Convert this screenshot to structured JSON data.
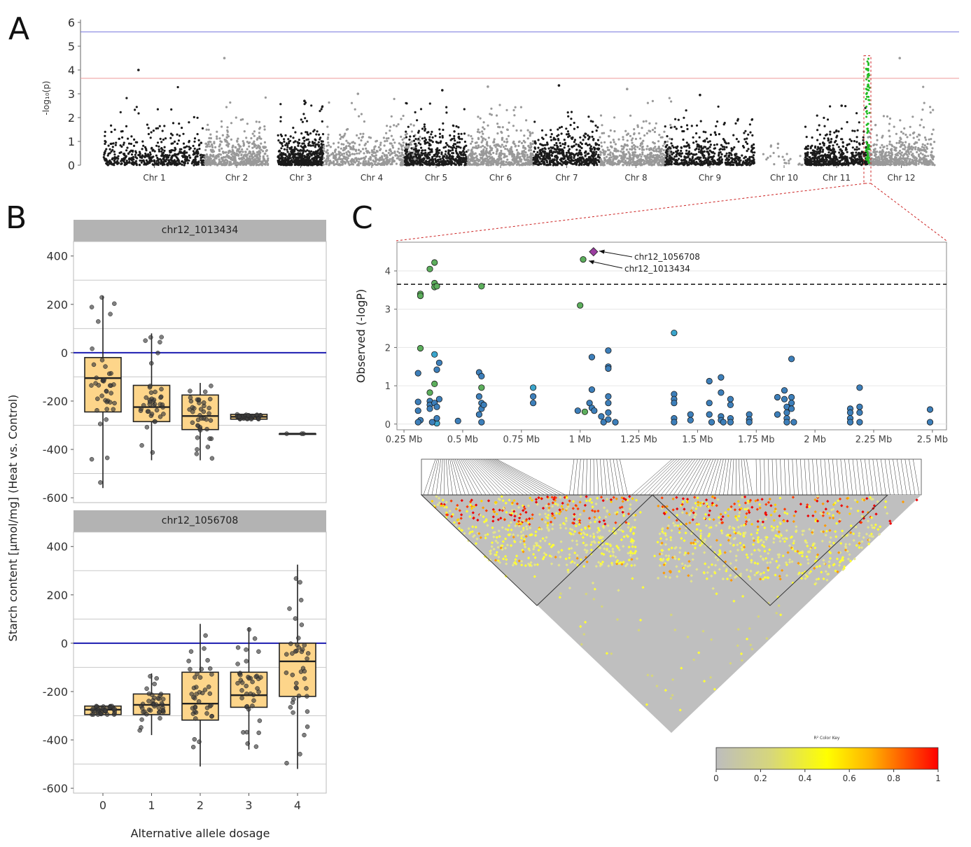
{
  "panels": {
    "a": "A",
    "b": "B",
    "c": "C"
  },
  "manhattan": {
    "ylabel": "-log₁₀(p)",
    "yticks": [
      0,
      1,
      2,
      3,
      4,
      5,
      6
    ],
    "ylim": [
      0,
      6
    ],
    "thresholds": [
      {
        "value": 5.6,
        "color": "#7777dd"
      },
      {
        "value": 3.65,
        "color": "#ee9999"
      }
    ],
    "colors": {
      "dark": "#1a1a1a",
      "light": "#999999",
      "highlight": "#22bb22"
    }
  },
  "boxplots": {
    "ylabel": "Starch content [µmol/mg] (Heat vs. Control)",
    "xlabel": "Alternative allele dosage",
    "yticks": [
      400,
      200,
      0,
      -200,
      -400,
      -600
    ],
    "ylim": [
      -620,
      460
    ],
    "xticks": [
      "0",
      "1",
      "2",
      "3",
      "4"
    ],
    "zero_line_color": "#1c1cb0",
    "box_fill": "#fdd58a",
    "facets": [
      {
        "title": "chr12_1013434",
        "boxes": [
          {
            "x": 0,
            "q1": -245,
            "median": -105,
            "q3": -20,
            "lo": -560,
            "hi": 235
          },
          {
            "x": 1,
            "q1": -285,
            "median": -225,
            "q3": -135,
            "lo": -445,
            "hi": 80
          },
          {
            "x": 2,
            "q1": -318,
            "median": -262,
            "q3": -175,
            "lo": -445,
            "hi": -125
          },
          {
            "x": 3,
            "q1": -275,
            "median": -265,
            "q3": -255,
            "lo": -275,
            "hi": -255
          },
          {
            "x": 4,
            "q1": -335,
            "median": -335,
            "q3": -335,
            "lo": -335,
            "hi": -335
          }
        ]
      },
      {
        "title": "chr12_1056708",
        "boxes": [
          {
            "x": 0,
            "q1": -295,
            "median": -275,
            "q3": -260,
            "lo": -295,
            "hi": -260
          },
          {
            "x": 1,
            "q1": -295,
            "median": -255,
            "q3": -210,
            "lo": -380,
            "hi": -125
          },
          {
            "x": 2,
            "q1": -318,
            "median": -250,
            "q3": -120,
            "lo": -510,
            "hi": 80
          },
          {
            "x": 3,
            "q1": -265,
            "median": -215,
            "q3": -120,
            "lo": -440,
            "hi": 65
          },
          {
            "x": 4,
            "q1": -220,
            "median": -75,
            "q3": 0,
            "lo": -520,
            "hi": 325
          }
        ]
      }
    ]
  },
  "chart_data": [
    {
      "type": "scatter",
      "name": "Manhattan plot",
      "x_categories": [
        "Chr 1",
        "Chr 2",
        "Chr 3",
        "Chr 4",
        "Chr 5",
        "Chr 6",
        "Chr 7",
        "Chr 8",
        "Chr 9",
        "Chr 10",
        "Chr 11",
        "Chr 12"
      ],
      "ylabel": "-log₁₀(p)",
      "ylim": [
        0,
        6
      ],
      "chromosome_peaks": [
        {
          "chr": "Chr 1",
          "max": 4.0
        },
        {
          "chr": "Chr 2",
          "max": 4.5
        },
        {
          "chr": "Chr 3",
          "max": 2.7
        },
        {
          "chr": "Chr 4",
          "max": 3.0
        },
        {
          "chr": "Chr 5",
          "max": 3.15
        },
        {
          "chr": "Chr 6",
          "max": 3.3
        },
        {
          "chr": "Chr 7",
          "max": 3.35
        },
        {
          "chr": "Chr 8",
          "max": 3.2
        },
        {
          "chr": "Chr 9",
          "max": 2.95
        },
        {
          "chr": "Chr 10",
          "max": 0.9
        },
        {
          "chr": "Chr 11",
          "max": 2.5
        },
        {
          "chr": "Chr 12",
          "max": 4.5
        }
      ]
    },
    {
      "type": "scatter",
      "name": "Regional association",
      "ylabel": "Observed (-logP)",
      "xticks": [
        "0.25 Mb",
        "0.5 Mb",
        "0.75 Mb",
        "1 Mb",
        "1.25 Mb",
        "1.5 Mb",
        "1.75 Mb",
        "2 Mb",
        "2.25 Mb",
        "2.5 Mb"
      ],
      "xlim": [
        0.22,
        2.56
      ],
      "ylim": [
        -0.15,
        4.75
      ],
      "yticks": [
        0,
        1,
        2,
        3,
        4
      ],
      "threshold": 3.65,
      "annotations": [
        {
          "label": "chr12_1056708",
          "x": 1.057,
          "y": 4.5
        },
        {
          "label": "chr12_1013434",
          "x": 1.013,
          "y": 4.3
        }
      ],
      "points": [
        {
          "x": 0.32,
          "y": 3.4,
          "g": "green"
        },
        {
          "x": 0.32,
          "y": 3.35,
          "g": "green"
        },
        {
          "x": 0.32,
          "y": 1.98,
          "g": "green"
        },
        {
          "x": 0.36,
          "y": 4.05,
          "g": "green"
        },
        {
          "x": 0.38,
          "y": 4.22,
          "g": "green"
        },
        {
          "x": 0.38,
          "y": 3.68,
          "g": "green"
        },
        {
          "x": 0.38,
          "y": 3.58,
          "g": "green"
        },
        {
          "x": 0.39,
          "y": 3.6,
          "g": "green"
        },
        {
          "x": 0.38,
          "y": 1.05,
          "g": "green"
        },
        {
          "x": 0.36,
          "y": 0.82,
          "g": "green"
        },
        {
          "x": 0.58,
          "y": 3.6,
          "g": "green"
        },
        {
          "x": 0.58,
          "y": 0.95,
          "g": "green"
        },
        {
          "x": 1.013,
          "y": 4.3,
          "g": "green"
        },
        {
          "x": 1.0,
          "y": 3.1,
          "g": "green"
        },
        {
          "x": 1.02,
          "y": 0.32,
          "g": "green"
        },
        {
          "x": 0.38,
          "y": 1.82,
          "g": "cyan"
        },
        {
          "x": 0.39,
          "y": 0.02,
          "g": "cyan"
        },
        {
          "x": 0.8,
          "y": 0.95,
          "g": "cyan"
        },
        {
          "x": 1.4,
          "y": 2.38,
          "g": "cyan"
        },
        {
          "x": 0.31,
          "y": 1.33,
          "g": "blue"
        },
        {
          "x": 0.31,
          "y": 0.58,
          "g": "blue"
        },
        {
          "x": 0.31,
          "y": 0.35,
          "g": "blue"
        },
        {
          "x": 0.32,
          "y": 0.1,
          "g": "blue"
        },
        {
          "x": 0.31,
          "y": 0.05,
          "g": "blue"
        },
        {
          "x": 0.36,
          "y": 0.6,
          "g": "blue"
        },
        {
          "x": 0.36,
          "y": 0.5,
          "g": "blue"
        },
        {
          "x": 0.36,
          "y": 0.4,
          "g": "blue"
        },
        {
          "x": 0.37,
          "y": 0.05,
          "g": "blue"
        },
        {
          "x": 0.38,
          "y": 0.55,
          "g": "blue"
        },
        {
          "x": 0.39,
          "y": 0.45,
          "g": "blue"
        },
        {
          "x": 0.39,
          "y": 0.15,
          "g": "blue"
        },
        {
          "x": 0.39,
          "y": 1.42,
          "g": "blue"
        },
        {
          "x": 0.4,
          "y": 1.6,
          "g": "blue"
        },
        {
          "x": 0.4,
          "y": 0.65,
          "g": "blue"
        },
        {
          "x": 0.48,
          "y": 0.08,
          "g": "blue"
        },
        {
          "x": 0.57,
          "y": 1.35,
          "g": "blue"
        },
        {
          "x": 0.58,
          "y": 1.25,
          "g": "blue"
        },
        {
          "x": 0.57,
          "y": 0.72,
          "g": "blue"
        },
        {
          "x": 0.58,
          "y": 0.55,
          "g": "blue"
        },
        {
          "x": 0.58,
          "y": 0.4,
          "g": "blue"
        },
        {
          "x": 0.57,
          "y": 0.25,
          "g": "blue"
        },
        {
          "x": 0.58,
          "y": 0.05,
          "g": "blue"
        },
        {
          "x": 0.59,
          "y": 0.5,
          "g": "blue"
        },
        {
          "x": 0.8,
          "y": 0.72,
          "g": "blue"
        },
        {
          "x": 0.8,
          "y": 0.55,
          "g": "blue"
        },
        {
          "x": 0.99,
          "y": 0.35,
          "g": "blue"
        },
        {
          "x": 1.05,
          "y": 1.75,
          "g": "blue"
        },
        {
          "x": 1.05,
          "y": 0.9,
          "g": "blue"
        },
        {
          "x": 1.04,
          "y": 0.55,
          "g": "blue"
        },
        {
          "x": 1.05,
          "y": 0.42,
          "g": "blue"
        },
        {
          "x": 1.06,
          "y": 0.35,
          "g": "blue"
        },
        {
          "x": 1.09,
          "y": 0.2,
          "g": "blue"
        },
        {
          "x": 1.1,
          "y": 0.05,
          "g": "blue"
        },
        {
          "x": 1.12,
          "y": 1.92,
          "g": "blue"
        },
        {
          "x": 1.12,
          "y": 1.5,
          "g": "blue"
        },
        {
          "x": 1.12,
          "y": 1.45,
          "g": "blue"
        },
        {
          "x": 1.12,
          "y": 0.72,
          "g": "blue"
        },
        {
          "x": 1.12,
          "y": 0.55,
          "g": "blue"
        },
        {
          "x": 1.12,
          "y": 0.3,
          "g": "blue"
        },
        {
          "x": 1.12,
          "y": 0.12,
          "g": "blue"
        },
        {
          "x": 1.15,
          "y": 0.05,
          "g": "blue"
        },
        {
          "x": 1.4,
          "y": 0.78,
          "g": "blue"
        },
        {
          "x": 1.4,
          "y": 0.65,
          "g": "blue"
        },
        {
          "x": 1.4,
          "y": 0.55,
          "g": "blue"
        },
        {
          "x": 1.4,
          "y": 0.15,
          "g": "blue"
        },
        {
          "x": 1.4,
          "y": 0.05,
          "g": "blue"
        },
        {
          "x": 1.47,
          "y": 0.25,
          "g": "blue"
        },
        {
          "x": 1.47,
          "y": 0.1,
          "g": "blue"
        },
        {
          "x": 1.55,
          "y": 1.12,
          "g": "blue"
        },
        {
          "x": 1.55,
          "y": 0.55,
          "g": "blue"
        },
        {
          "x": 1.55,
          "y": 0.25,
          "g": "blue"
        },
        {
          "x": 1.56,
          "y": 0.05,
          "g": "blue"
        },
        {
          "x": 1.6,
          "y": 1.22,
          "g": "blue"
        },
        {
          "x": 1.6,
          "y": 0.82,
          "g": "blue"
        },
        {
          "x": 1.6,
          "y": 0.2,
          "g": "blue"
        },
        {
          "x": 1.6,
          "y": 0.1,
          "g": "blue"
        },
        {
          "x": 1.61,
          "y": 0.05,
          "g": "blue"
        },
        {
          "x": 1.64,
          "y": 0.65,
          "g": "blue"
        },
        {
          "x": 1.64,
          "y": 0.5,
          "g": "blue"
        },
        {
          "x": 1.64,
          "y": 0.15,
          "g": "blue"
        },
        {
          "x": 1.64,
          "y": 0.05,
          "g": "blue"
        },
        {
          "x": 1.72,
          "y": 0.25,
          "g": "blue"
        },
        {
          "x": 1.72,
          "y": 0.12,
          "g": "blue"
        },
        {
          "x": 1.72,
          "y": 0.05,
          "g": "blue"
        },
        {
          "x": 1.84,
          "y": 0.7,
          "g": "blue"
        },
        {
          "x": 1.84,
          "y": 0.25,
          "g": "blue"
        },
        {
          "x": 1.87,
          "y": 0.88,
          "g": "blue"
        },
        {
          "x": 1.87,
          "y": 0.65,
          "g": "blue"
        },
        {
          "x": 1.88,
          "y": 0.45,
          "g": "blue"
        },
        {
          "x": 1.88,
          "y": 0.3,
          "g": "blue"
        },
        {
          "x": 1.88,
          "y": 0.15,
          "g": "blue"
        },
        {
          "x": 1.88,
          "y": 0.05,
          "g": "blue"
        },
        {
          "x": 1.9,
          "y": 1.7,
          "g": "blue"
        },
        {
          "x": 1.9,
          "y": 0.7,
          "g": "blue"
        },
        {
          "x": 1.9,
          "y": 0.55,
          "g": "blue"
        },
        {
          "x": 1.9,
          "y": 0.4,
          "g": "blue"
        },
        {
          "x": 1.91,
          "y": 0.05,
          "g": "blue"
        },
        {
          "x": 2.15,
          "y": 0.4,
          "g": "blue"
        },
        {
          "x": 2.15,
          "y": 0.3,
          "g": "blue"
        },
        {
          "x": 2.15,
          "y": 0.15,
          "g": "blue"
        },
        {
          "x": 2.15,
          "y": 0.05,
          "g": "blue"
        },
        {
          "x": 2.19,
          "y": 0.95,
          "g": "blue"
        },
        {
          "x": 2.19,
          "y": 0.45,
          "g": "blue"
        },
        {
          "x": 2.19,
          "y": 0.3,
          "g": "blue"
        },
        {
          "x": 2.19,
          "y": 0.05,
          "g": "blue"
        },
        {
          "x": 2.49,
          "y": 0.38,
          "g": "blue"
        },
        {
          "x": 2.49,
          "y": 0.05,
          "g": "blue"
        },
        {
          "x": 1.057,
          "y": 4.5,
          "g": "purple"
        }
      ],
      "group_colors": {
        "green": "#5cae5c",
        "blue": "#3d7fba",
        "cyan": "#3aa5cc",
        "purple": "#9b3ea0"
      }
    },
    {
      "type": "heatmap",
      "name": "LD heatmap",
      "color_key_title": "R² Color Key",
      "color_key_ticks": [
        "0",
        "0.2",
        "0.4",
        "0.6",
        "0.8",
        "1"
      ],
      "color_key_range": [
        0,
        1
      ]
    }
  ]
}
